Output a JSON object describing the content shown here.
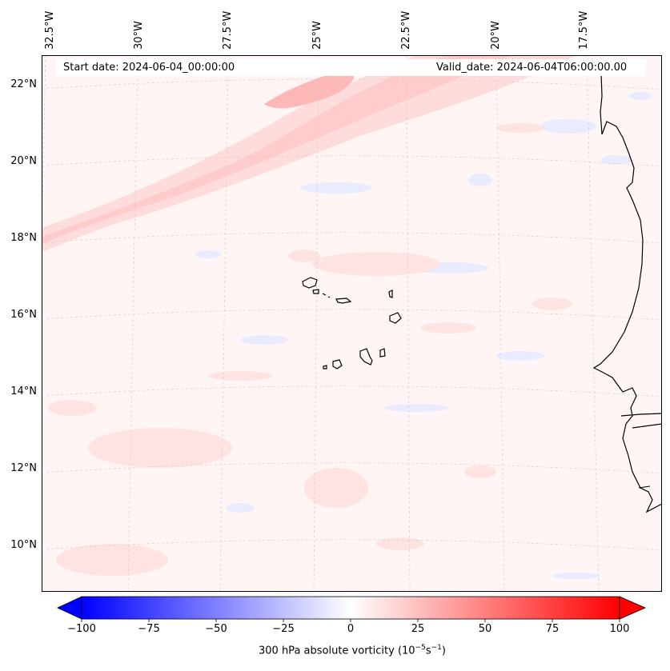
{
  "map": {
    "start_date": "Start date: 2024-06-04_00:00:00",
    "valid_date": "Valid_date: 2024-06-04T06:00:00.00",
    "lon_labels": [
      "32.5°W",
      "30°W",
      "27.5°W",
      "25°W",
      "22.5°W",
      "20°W",
      "17.5°W"
    ],
    "lat_labels": [
      "22°N",
      "20°N",
      "18°N",
      "16°N",
      "14°N",
      "12°N",
      "10°N"
    ],
    "colorbar": {
      "ticks": [
        "−100",
        "−75",
        "−50",
        "−25",
        "0",
        "25",
        "50",
        "75",
        "100"
      ],
      "label": "300 hPa absolute vorticity (10",
      "label_exp1": "−5",
      "label_mid": "s",
      "label_exp2": "−1",
      "label_end": ")",
      "min": -100,
      "max": 100,
      "colors": {
        "low": "#0000ff",
        "mid": "#ffffff",
        "high": "#ff0000"
      }
    },
    "features": [
      "Cape Verde islands",
      "West African coastline"
    ]
  }
}
